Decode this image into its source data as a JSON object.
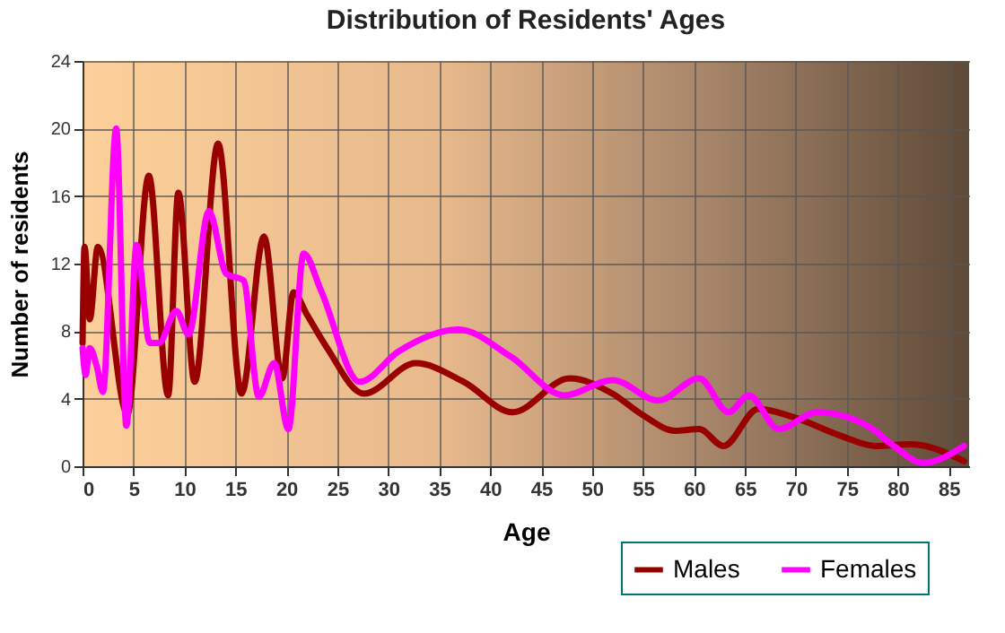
{
  "chart_data": {
    "type": "line",
    "title": "Distribution of Residents' Ages",
    "xlabel": "Age",
    "ylabel": "Number of residents",
    "xlim": [
      0,
      87
    ],
    "xticks": [
      0,
      5,
      10,
      15,
      20,
      25,
      30,
      35,
      40,
      45,
      50,
      55,
      60,
      65,
      70,
      75,
      80,
      85
    ],
    "ylim": [
      0,
      24
    ],
    "yticks": [
      0,
      4,
      8,
      12,
      16,
      20,
      24
    ],
    "grid": true,
    "legend": "bottom right",
    "marker": "none",
    "line_style": "solid",
    "series": [
      {
        "name": "Males",
        "color": "#990000",
        "x": [
          0,
          0.2,
          0.7,
          1.5,
          4.4,
          6.5,
          8.4,
          9.4,
          11.0,
          13.3,
          15.6,
          17.8,
          19.6,
          20.7,
          22,
          24,
          27.6,
          32.7,
          37.4,
          42.2,
          47.8,
          52,
          54.8,
          58.2,
          60.5,
          62.9,
          66.3,
          69.8,
          74.4,
          77.8,
          81.3,
          86.5
        ],
        "values": [
          7.3,
          13,
          8.7,
          13,
          3.1,
          17.2,
          4.2,
          16.2,
          5.0,
          19.1,
          4.3,
          13.6,
          5.2,
          10.3,
          9,
          7,
          4.3,
          6.1,
          5.0,
          3.2,
          5.2,
          4.3,
          3.1,
          2.1,
          2.2,
          1.2,
          3.4,
          2.9,
          1.8,
          1.2,
          1.3,
          0.3
        ]
      },
      {
        "name": "Females",
        "color": "#ff00ff",
        "x": [
          0,
          0.3,
          0.7,
          1.4,
          2.0,
          3.3,
          4.3,
          5.3,
          6.6,
          7.5,
          9.2,
          10.4,
          12.4,
          14.1,
          15.8,
          17.3,
          18.8,
          20.2,
          21.7,
          23.4,
          27.2,
          31,
          36.9,
          42,
          47.3,
          52,
          56.5,
          60.5,
          63.4,
          65.4,
          68.3,
          72.1,
          77.3,
          79.6,
          82.5,
          86.5
        ],
        "values": [
          7.0,
          5.4,
          7.0,
          5.9,
          4.4,
          20.0,
          2.4,
          13.1,
          7.3,
          7.3,
          9.2,
          7.8,
          15.1,
          11.4,
          11.0,
          4.1,
          6.1,
          2.2,
          12.6,
          10.4,
          5.0,
          6.8,
          8.1,
          6.5,
          4.2,
          5.1,
          3.9,
          5.2,
          3.2,
          4.2,
          2.2,
          3.2,
          2.3,
          1.2,
          0.2,
          1.2
        ]
      }
    ]
  }
}
